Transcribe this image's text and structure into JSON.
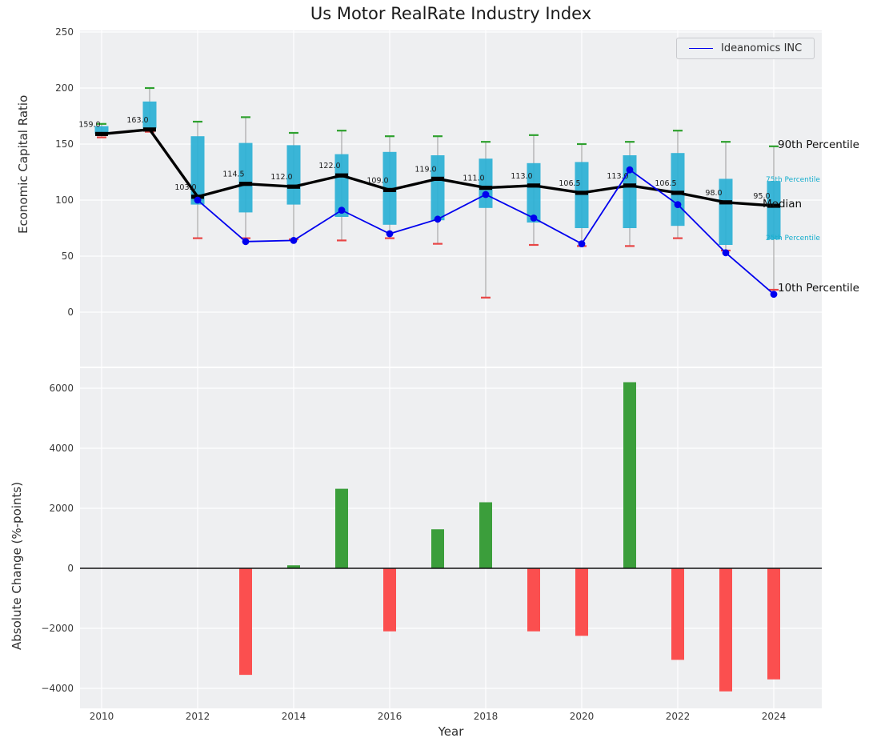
{
  "title": "Us Motor RealRate Industry Index",
  "legend": {
    "label": "Ideanomics INC"
  },
  "colors": {
    "panel_bg": "#eeeff1",
    "grid": "#ffffff",
    "box": "#2ab0d5",
    "p90_cap": "#2ea12e",
    "p10_cap": "#e84545",
    "median": "#000000",
    "company": "#0000ee",
    "bar_positive": "#3b9e3b",
    "bar_negative": "#fb4f4f",
    "whisker": "#9a9a9a",
    "annotation_small": "#17aecd",
    "tick_text": "#3a3a3a"
  },
  "chart_data": [
    {
      "type": "boxplot+line",
      "panel": "top",
      "title": "Us Motor RealRate Industry Index",
      "ylabel": "Economic Capital Ratio",
      "ylim": [
        -49,
        251
      ],
      "yticks": [
        0,
        50,
        100,
        150,
        200,
        250
      ],
      "xticks": [
        2010,
        2012,
        2014,
        2016,
        2018,
        2020,
        2022,
        2024
      ],
      "grid": true,
      "legend_position": "upper right",
      "years": [
        2010,
        2011,
        2012,
        2013,
        2014,
        2015,
        2016,
        2017,
        2018,
        2019,
        2020,
        2021,
        2022,
        2023,
        2024
      ],
      "median": [
        159,
        163,
        103,
        114.5,
        112,
        122,
        109,
        119,
        111,
        113,
        106.5,
        113,
        106.5,
        98,
        95
      ],
      "median_labels": [
        "159.0",
        "163.0",
        "103.0",
        "114.5",
        "112.0",
        "122.0",
        "109.0",
        "119.0",
        "111.0",
        "113.0",
        "106.5",
        "113.0",
        "106.5",
        "98.0",
        "95.0"
      ],
      "p90": [
        168,
        200,
        170,
        174,
        160,
        162,
        157,
        157,
        152,
        158,
        150,
        152,
        162,
        152,
        148
      ],
      "p75": [
        166,
        188,
        157,
        151,
        149,
        141,
        143,
        140,
        137,
        133,
        134,
        140,
        142,
        119,
        117
      ],
      "p25": [
        159,
        164,
        96,
        89,
        96,
        85,
        78,
        82,
        93,
        80,
        75,
        75,
        77,
        60,
        65
      ],
      "p10": [
        156,
        161,
        66,
        66,
        65,
        64,
        66,
        61,
        13,
        60,
        59,
        59,
        66,
        55,
        20
      ],
      "company": {
        "name": "Ideanomics INC",
        "years": [
          2012,
          2013,
          2014,
          2015,
          2016,
          2017,
          2018,
          2019,
          2020,
          2021,
          2022,
          2023,
          2024
        ],
        "values": [
          100,
          63,
          64,
          91,
          70,
          83,
          105,
          84,
          61,
          127,
          96,
          53,
          16
        ]
      },
      "annotations": [
        {
          "label": "90th Percentile",
          "anchor": "p90",
          "size": "large"
        },
        {
          "label": "75th Percentile",
          "anchor": "p75",
          "size": "small"
        },
        {
          "label": "Median",
          "anchor": "median",
          "size": "large"
        },
        {
          "label": "25th Percentile",
          "anchor": "p25",
          "size": "small"
        },
        {
          "label": "10th Percentile",
          "anchor": "p10",
          "size": "large"
        }
      ]
    },
    {
      "type": "bar",
      "panel": "bottom",
      "ylabel": "Absolute Change (%-points)",
      "xlabel": "Year",
      "ylim": [
        -4650,
        6650
      ],
      "yticks": [
        -4000,
        -2000,
        0,
        2000,
        4000,
        6000
      ],
      "xticks": [
        2010,
        2012,
        2014,
        2016,
        2018,
        2020,
        2022,
        2024
      ],
      "grid": true,
      "years": [
        2013,
        2014,
        2015,
        2016,
        2017,
        2018,
        2019,
        2020,
        2021,
        2022,
        2023,
        2024
      ],
      "values": [
        -3550,
        100,
        2650,
        -2100,
        1300,
        2200,
        -2100,
        -2250,
        6200,
        -3050,
        -4100,
        -3700
      ]
    }
  ]
}
